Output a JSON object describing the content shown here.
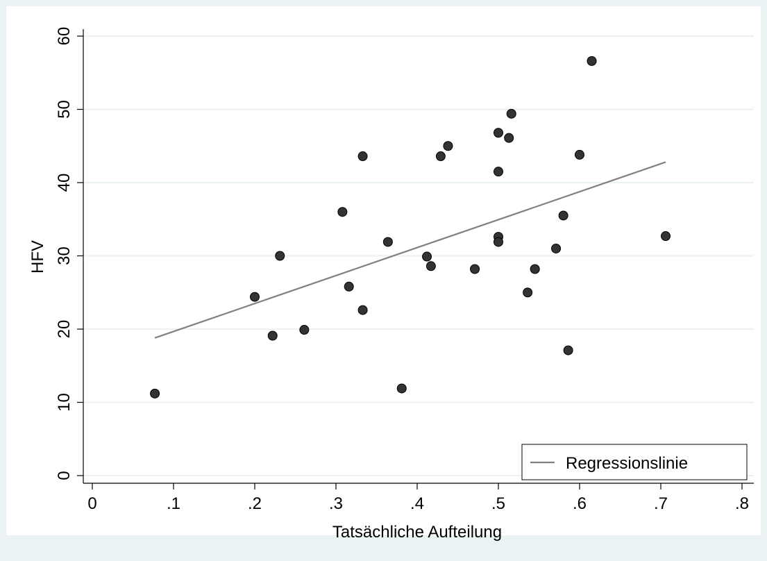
{
  "chart_data": {
    "type": "scatter",
    "title": "",
    "xlabel": "Tatsächliche Aufteilung",
    "ylabel": "HFV",
    "xlim": [
      0,
      0.8
    ],
    "ylim": [
      0,
      60
    ],
    "x_ticks": [
      0,
      0.1,
      0.2,
      0.3,
      0.4,
      0.5,
      0.6,
      0.7,
      0.8
    ],
    "x_tick_labels": [
      "0",
      ".1",
      ".2",
      ".3",
      ".4",
      ".5",
      ".6",
      ".7",
      ".8"
    ],
    "y_ticks": [
      0,
      10,
      20,
      30,
      40,
      50,
      60
    ],
    "y_tick_labels": [
      "0",
      "10",
      "20",
      "30",
      "40",
      "50",
      "60"
    ],
    "grid": "horizontal",
    "legend_position": "bottom-right",
    "series": [
      {
        "kind": "scatter",
        "color": "#333333",
        "points": [
          {
            "x": 0.077,
            "y": 11.2
          },
          {
            "x": 0.2,
            "y": 24.4
          },
          {
            "x": 0.222,
            "y": 19.1
          },
          {
            "x": 0.231,
            "y": 30.0
          },
          {
            "x": 0.261,
            "y": 19.9
          },
          {
            "x": 0.308,
            "y": 36.0
          },
          {
            "x": 0.316,
            "y": 25.8
          },
          {
            "x": 0.333,
            "y": 43.6
          },
          {
            "x": 0.333,
            "y": 22.6
          },
          {
            "x": 0.364,
            "y": 31.9
          },
          {
            "x": 0.381,
            "y": 11.9
          },
          {
            "x": 0.412,
            "y": 29.9
          },
          {
            "x": 0.417,
            "y": 28.6
          },
          {
            "x": 0.429,
            "y": 43.6
          },
          {
            "x": 0.438,
            "y": 45.0
          },
          {
            "x": 0.471,
            "y": 28.2
          },
          {
            "x": 0.5,
            "y": 46.8
          },
          {
            "x": 0.5,
            "y": 41.5
          },
          {
            "x": 0.5,
            "y": 32.6
          },
          {
            "x": 0.5,
            "y": 31.9
          },
          {
            "x": 0.513,
            "y": 46.1
          },
          {
            "x": 0.516,
            "y": 49.4
          },
          {
            "x": 0.536,
            "y": 25.0
          },
          {
            "x": 0.545,
            "y": 28.2
          },
          {
            "x": 0.571,
            "y": 31.0
          },
          {
            "x": 0.58,
            "y": 35.5
          },
          {
            "x": 0.586,
            "y": 17.1
          },
          {
            "x": 0.6,
            "y": 43.8
          },
          {
            "x": 0.615,
            "y": 56.6
          },
          {
            "x": 0.706,
            "y": 32.7
          }
        ]
      },
      {
        "kind": "line",
        "name": "Regressionslinie",
        "color": "#808080",
        "points": [
          {
            "x": 0.077,
            "y": 18.8
          },
          {
            "x": 0.706,
            "y": 42.8
          }
        ]
      }
    ]
  }
}
